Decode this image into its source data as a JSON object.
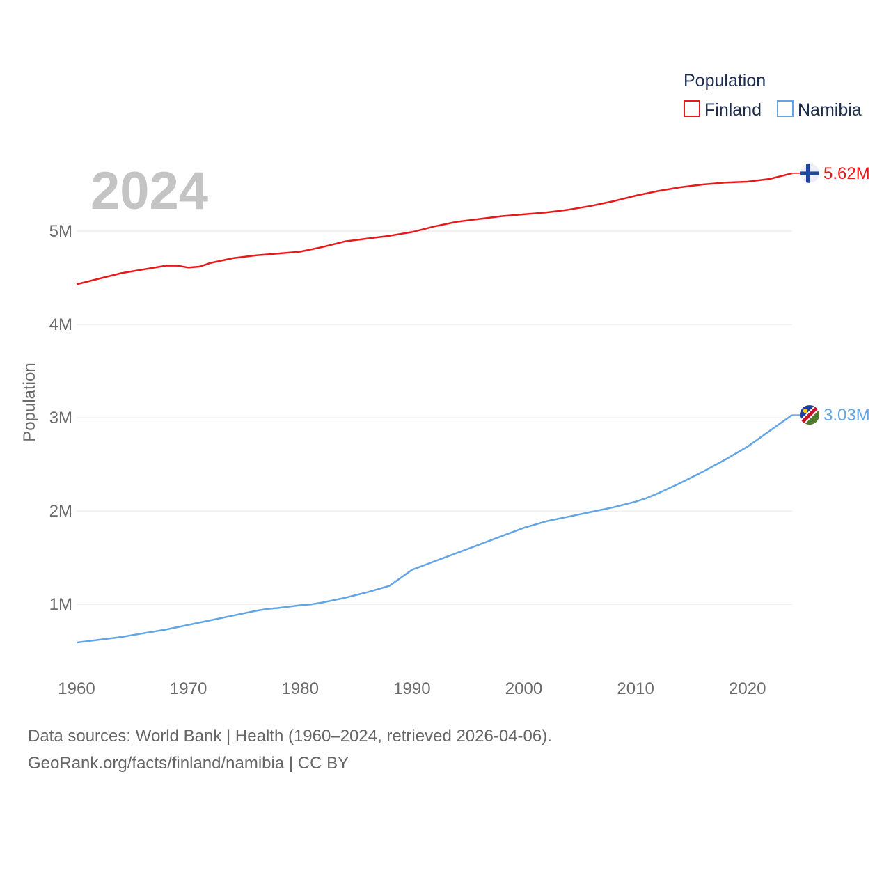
{
  "chart_data": {
    "type": "line",
    "year_label": "2024",
    "ylabel": "Population",
    "xlim": [
      1960,
      2024
    ],
    "ylim": [
      300000,
      6000000
    ],
    "x_ticks": [
      1960,
      1970,
      1980,
      1990,
      2000,
      2010,
      2020
    ],
    "x_tick_labels": [
      "1960",
      "1970",
      "1980",
      "1990",
      "2000",
      "2010",
      "2020"
    ],
    "y_ticks": [
      1000000,
      2000000,
      3000000,
      4000000,
      5000000
    ],
    "y_tick_labels": [
      "1M",
      "2M",
      "3M",
      "4M",
      "5M"
    ],
    "legend": {
      "title": "Population",
      "position": "top-right"
    },
    "series": [
      {
        "name": "Finland",
        "color": "#e8191a",
        "end_label": "5.62M",
        "flag_icon": "finland-flag-icon",
        "x": [
          1960,
          1962,
          1964,
          1966,
          1968,
          1969,
          1970,
          1971,
          1972,
          1974,
          1976,
          1978,
          1980,
          1982,
          1984,
          1986,
          1988,
          1990,
          1992,
          1994,
          1996,
          1998,
          2000,
          2002,
          2004,
          2006,
          2008,
          2010,
          2012,
          2014,
          2016,
          2018,
          2020,
          2022,
          2024
        ],
        "values": [
          4430000,
          4490000,
          4550000,
          4590000,
          4630000,
          4630000,
          4610000,
          4620000,
          4660000,
          4710000,
          4740000,
          4760000,
          4780000,
          4830000,
          4890000,
          4920000,
          4950000,
          4990000,
          5050000,
          5100000,
          5130000,
          5160000,
          5180000,
          5200000,
          5230000,
          5270000,
          5320000,
          5380000,
          5430000,
          5470000,
          5500000,
          5520000,
          5530000,
          5560000,
          5620000
        ]
      },
      {
        "name": "Namibia",
        "color": "#63a5e4",
        "end_label": "3.03M",
        "flag_icon": "namibia-flag-icon",
        "x": [
          1960,
          1962,
          1964,
          1966,
          1968,
          1970,
          1972,
          1974,
          1976,
          1977,
          1978,
          1980,
          1981,
          1982,
          1984,
          1986,
          1988,
          1990,
          1992,
          1994,
          1996,
          1998,
          2000,
          2002,
          2004,
          2006,
          2008,
          2010,
          2011,
          2012,
          2014,
          2016,
          2018,
          2020,
          2022,
          2024
        ],
        "values": [
          590000,
          620000,
          650000,
          690000,
          730000,
          780000,
          830000,
          880000,
          930000,
          950000,
          960000,
          990000,
          1000000,
          1020000,
          1070000,
          1130000,
          1200000,
          1370000,
          1460000,
          1550000,
          1640000,
          1730000,
          1820000,
          1890000,
          1940000,
          1990000,
          2040000,
          2100000,
          2140000,
          2190000,
          2300000,
          2420000,
          2550000,
          2690000,
          2860000,
          3030000
        ]
      }
    ]
  },
  "footer": {
    "sources": "Data sources: World Bank | Health (1960–2024, retrieved 2026-04-06).",
    "attribution": "GeoRank.org/facts/finland/namibia | CC BY"
  }
}
